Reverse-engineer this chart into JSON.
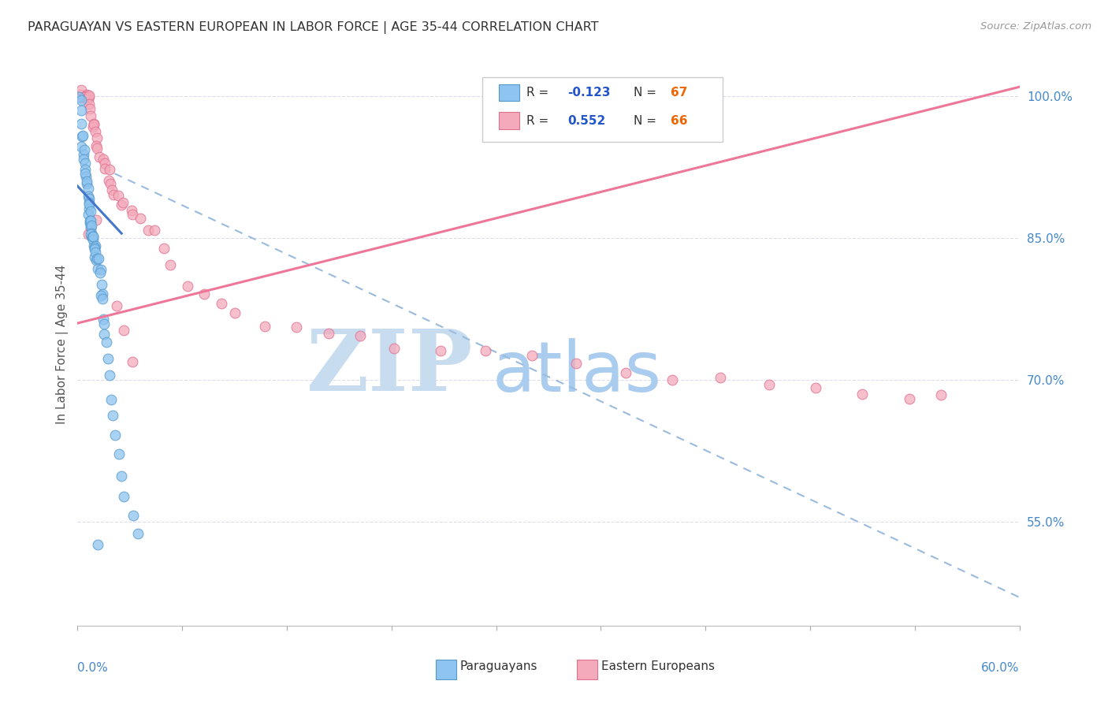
{
  "title": "PARAGUAYAN VS EASTERN EUROPEAN IN LABOR FORCE | AGE 35-44 CORRELATION CHART",
  "source": "Source: ZipAtlas.com",
  "ylabel": "In Labor Force | Age 35-44",
  "right_ytick_vals": [
    1.0,
    0.85,
    0.7,
    0.55
  ],
  "right_ytick_labels": [
    "100.0%",
    "85.0%",
    "70.0%",
    "55.0%"
  ],
  "xlim": [
    0.0,
    0.6
  ],
  "ylim": [
    0.44,
    1.035
  ],
  "paraguayan_color": "#8EC4F0",
  "paraguayan_edge": "#5599CC",
  "eastern_color": "#F4AABB",
  "eastern_edge": "#E07090",
  "blue_line_color": "#4477CC",
  "pink_line_color": "#EE7799",
  "dashed_line_color": "#99BBDD",
  "grid_color": "#DDDDEE",
  "legend_box_color": "#CCCCCC",
  "right_axis_color": "#4488CC",
  "bottom_label_color": "#4488CC",
  "title_color": "#333333",
  "source_color": "#999999",
  "ylabel_color": "#555555",
  "legend_R_color": "#333333",
  "legend_val_color": "#2255CC",
  "legend_N_color": "#EE6600",
  "watermark_zip_color": "#C8DCF0",
  "watermark_atlas_color": "#AACCEE",
  "scatter_size": 85,
  "scatter_alpha": 0.75,
  "paraguayan_x": [
    0.001,
    0.002,
    0.002,
    0.003,
    0.003,
    0.003,
    0.003,
    0.004,
    0.004,
    0.004,
    0.005,
    0.005,
    0.005,
    0.005,
    0.006,
    0.006,
    0.006,
    0.006,
    0.007,
    0.007,
    0.007,
    0.007,
    0.007,
    0.008,
    0.008,
    0.008,
    0.008,
    0.009,
    0.009,
    0.009,
    0.009,
    0.009,
    0.01,
    0.01,
    0.01,
    0.01,
    0.01,
    0.011,
    0.011,
    0.011,
    0.011,
    0.012,
    0.012,
    0.012,
    0.013,
    0.013,
    0.014,
    0.014,
    0.015,
    0.015,
    0.015,
    0.016,
    0.016,
    0.017,
    0.017,
    0.018,
    0.019,
    0.02,
    0.021,
    0.022,
    0.024,
    0.026,
    0.028,
    0.03,
    0.035,
    0.038,
    0.013
  ],
  "paraguayan_y": [
    1.0,
    1.0,
    0.985,
    0.97,
    0.96,
    0.955,
    0.95,
    0.945,
    0.94,
    0.935,
    0.93,
    0.925,
    0.92,
    0.915,
    0.91,
    0.905,
    0.9,
    0.895,
    0.895,
    0.89,
    0.885,
    0.88,
    0.875,
    0.875,
    0.87,
    0.868,
    0.865,
    0.863,
    0.86,
    0.858,
    0.856,
    0.853,
    0.852,
    0.85,
    0.848,
    0.846,
    0.844,
    0.842,
    0.84,
    0.838,
    0.836,
    0.834,
    0.832,
    0.83,
    0.825,
    0.82,
    0.815,
    0.81,
    0.8,
    0.795,
    0.79,
    0.78,
    0.77,
    0.76,
    0.75,
    0.74,
    0.72,
    0.7,
    0.68,
    0.66,
    0.64,
    0.62,
    0.6,
    0.58,
    0.56,
    0.54,
    0.525
  ],
  "eastern_x": [
    0.001,
    0.002,
    0.003,
    0.004,
    0.004,
    0.005,
    0.005,
    0.006,
    0.006,
    0.007,
    0.007,
    0.008,
    0.008,
    0.009,
    0.01,
    0.01,
    0.011,
    0.012,
    0.013,
    0.014,
    0.015,
    0.016,
    0.017,
    0.018,
    0.019,
    0.02,
    0.021,
    0.022,
    0.023,
    0.025,
    0.027,
    0.03,
    0.033,
    0.036,
    0.04,
    0.045,
    0.05,
    0.055,
    0.06,
    0.07,
    0.08,
    0.09,
    0.1,
    0.12,
    0.14,
    0.16,
    0.18,
    0.2,
    0.23,
    0.26,
    0.29,
    0.32,
    0.35,
    0.38,
    0.41,
    0.44,
    0.47,
    0.5,
    0.53,
    0.55,
    0.008,
    0.01,
    0.012,
    0.025,
    0.03,
    0.035
  ],
  "eastern_y": [
    1.0,
    1.0,
    1.0,
    1.0,
    1.0,
    1.0,
    1.0,
    1.0,
    1.0,
    1.0,
    0.99,
    0.985,
    0.98,
    0.975,
    0.97,
    0.965,
    0.96,
    0.955,
    0.95,
    0.945,
    0.94,
    0.935,
    0.93,
    0.925,
    0.92,
    0.915,
    0.91,
    0.905,
    0.9,
    0.895,
    0.89,
    0.885,
    0.88,
    0.875,
    0.87,
    0.86,
    0.855,
    0.84,
    0.82,
    0.8,
    0.79,
    0.78,
    0.77,
    0.76,
    0.755,
    0.75,
    0.745,
    0.74,
    0.735,
    0.73,
    0.72,
    0.715,
    0.71,
    0.705,
    0.7,
    0.695,
    0.69,
    0.685,
    0.68,
    0.675,
    0.86,
    0.855,
    0.87,
    0.78,
    0.75,
    0.72
  ],
  "blue_line_x": [
    0.0,
    0.028
  ],
  "blue_line_y": [
    0.905,
    0.855
  ],
  "pink_line_x": [
    0.0,
    0.6
  ],
  "pink_line_y": [
    0.76,
    1.01
  ],
  "dash_line_x": [
    0.015,
    0.6
  ],
  "dash_line_y": [
    0.925,
    0.47
  ]
}
